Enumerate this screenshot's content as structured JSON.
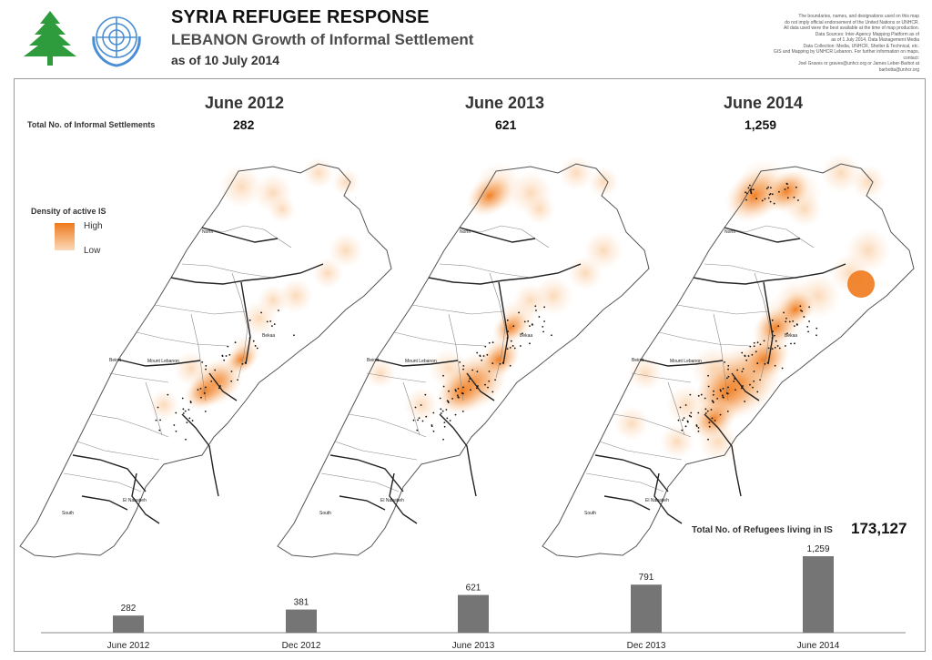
{
  "header": {
    "title": "SYRIA REFUGEE RESPONSE",
    "subtitle_prefix": "LEBANON",
    "subtitle_rest": " Growth of Informal Settlement",
    "as_of": "as of 10 July 2014",
    "disclaimer": [
      "The boundaries, names, and designations used on this map",
      "do not imply official endorsement of the United Nations or UNHCR.",
      "All data used were the best available at the time of map production.",
      "Data Sources: Inter-Agency Mapping Platform as of",
      "as of 1 July 2014, Data Management Media",
      "Data Collection: Media, UNHCR, Shelter & Technical, etc.",
      "GIS and Mapping by UNHCR Lebanon. For further information on maps, contact:",
      "Joel Graves or graves@unhcr.org or James Leber-Barbot at barbotta@unhcr.org"
    ]
  },
  "labels": {
    "count_label": "Total No. of Informal Settlements",
    "legend_title": "Density of active IS",
    "legend_high": "High",
    "legend_low": "Low",
    "refugee_label": "Total No. of Refugees living in IS",
    "refugee_value": "173,127"
  },
  "periods": [
    {
      "title": "June 2012",
      "count": "282",
      "intensity": 0.35
    },
    {
      "title": "June 2013",
      "count": "621",
      "intensity": 0.6
    },
    {
      "title": "June 2014",
      "count": "1,259",
      "intensity": 0.95
    }
  ],
  "map_regions": {
    "north": "North",
    "mount_lebanon": "Mount Lebanon",
    "beirut": "Beirut",
    "bekaa": "Bekaa",
    "south": "South",
    "el_nabatieh": "El Nabatieh"
  },
  "chart_data": {
    "type": "bar",
    "categories": [
      "June 2012",
      "Dec 2012",
      "June 2013",
      "Dec 2013",
      "June 2014"
    ],
    "values": [
      282,
      381,
      621,
      791,
      1259
    ],
    "value_labels": [
      "282",
      "381",
      "621",
      "791",
      "1,259"
    ],
    "ylim": [
      0,
      1300
    ],
    "colors": {
      "bar": "#757575"
    }
  },
  "colors": {
    "density_high": "#ef7a1c",
    "density_low": "#fbd9b8"
  }
}
